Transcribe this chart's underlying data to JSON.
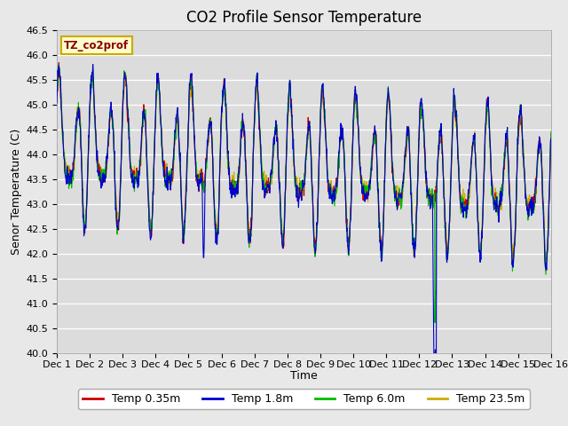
{
  "title": "CO2 Profile Sensor Temperature",
  "ylabel": "Senor Temperature (C)",
  "xlabel": "Time",
  "legend_label": "TZ_co2prof",
  "series_labels": [
    "Temp 0.35m",
    "Temp 1.8m",
    "Temp 6.0m",
    "Temp 23.5m"
  ],
  "series_colors": [
    "#cc0000",
    "#0000cc",
    "#00bb00",
    "#ccaa00"
  ],
  "ylim": [
    40.0,
    46.5
  ],
  "yticks": [
    40.0,
    40.5,
    41.0,
    41.5,
    42.0,
    42.5,
    43.0,
    43.5,
    44.0,
    44.5,
    45.0,
    45.5,
    46.0,
    46.5
  ],
  "xtick_labels": [
    "Dec 1",
    "Dec 2",
    "Dec 3",
    "Dec 4",
    "Dec 5",
    "Dec 6",
    "Dec 7",
    "Dec 8",
    "Dec 9",
    "Dec 10",
    "Dec 11",
    "Dec 12",
    "Dec 13",
    "Dec 14",
    "Dec 15",
    "Dec 16"
  ],
  "n_days": 15,
  "pts_per_day": 96,
  "background_color": "#e8e8e8",
  "plot_bg_color": "#dcdcdc",
  "grid_color": "#ffffff",
  "title_fontsize": 12,
  "label_fontsize": 9,
  "tick_fontsize": 8,
  "legend_fontsize": 9,
  "linewidth": 0.8
}
